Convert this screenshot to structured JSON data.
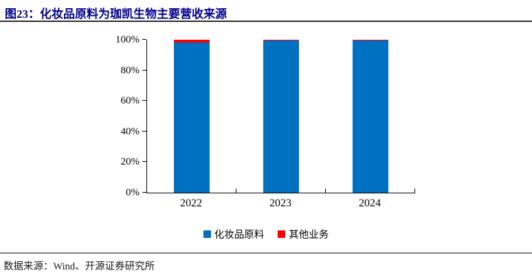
{
  "figure": {
    "title": "图23：化妆品原料为珈凯生物主要营收来源",
    "source": "数据来源：Wind、开源证券研究所"
  },
  "colors": {
    "title_navy": "#00008C",
    "series_blue": "#0070C0",
    "series_red": "#FF0000",
    "axis_black": "#000000",
    "top_rule": "#2B2B2B",
    "bottom_rule": "#808080"
  },
  "chart_data": {
    "type": "bar",
    "stacked": true,
    "title": "图23：化妆品原料为珈凯生物主要营收来源",
    "categories": [
      "2022",
      "2023",
      "2024"
    ],
    "series": [
      {
        "name": "化妆品原料",
        "color": "#0070C0",
        "values": [
          98.1,
          99.6,
          99.8
        ]
      },
      {
        "name": "其他业务",
        "color": "#FF0000",
        "values": [
          1.9,
          0.4,
          0.2
        ]
      }
    ],
    "y_ticks": [
      "0%",
      "20%",
      "40%",
      "60%",
      "80%",
      "100%"
    ],
    "ylim": [
      0,
      100
    ],
    "xlabel": "",
    "ylabel": "",
    "grid": false,
    "legend_position": "bottom"
  }
}
